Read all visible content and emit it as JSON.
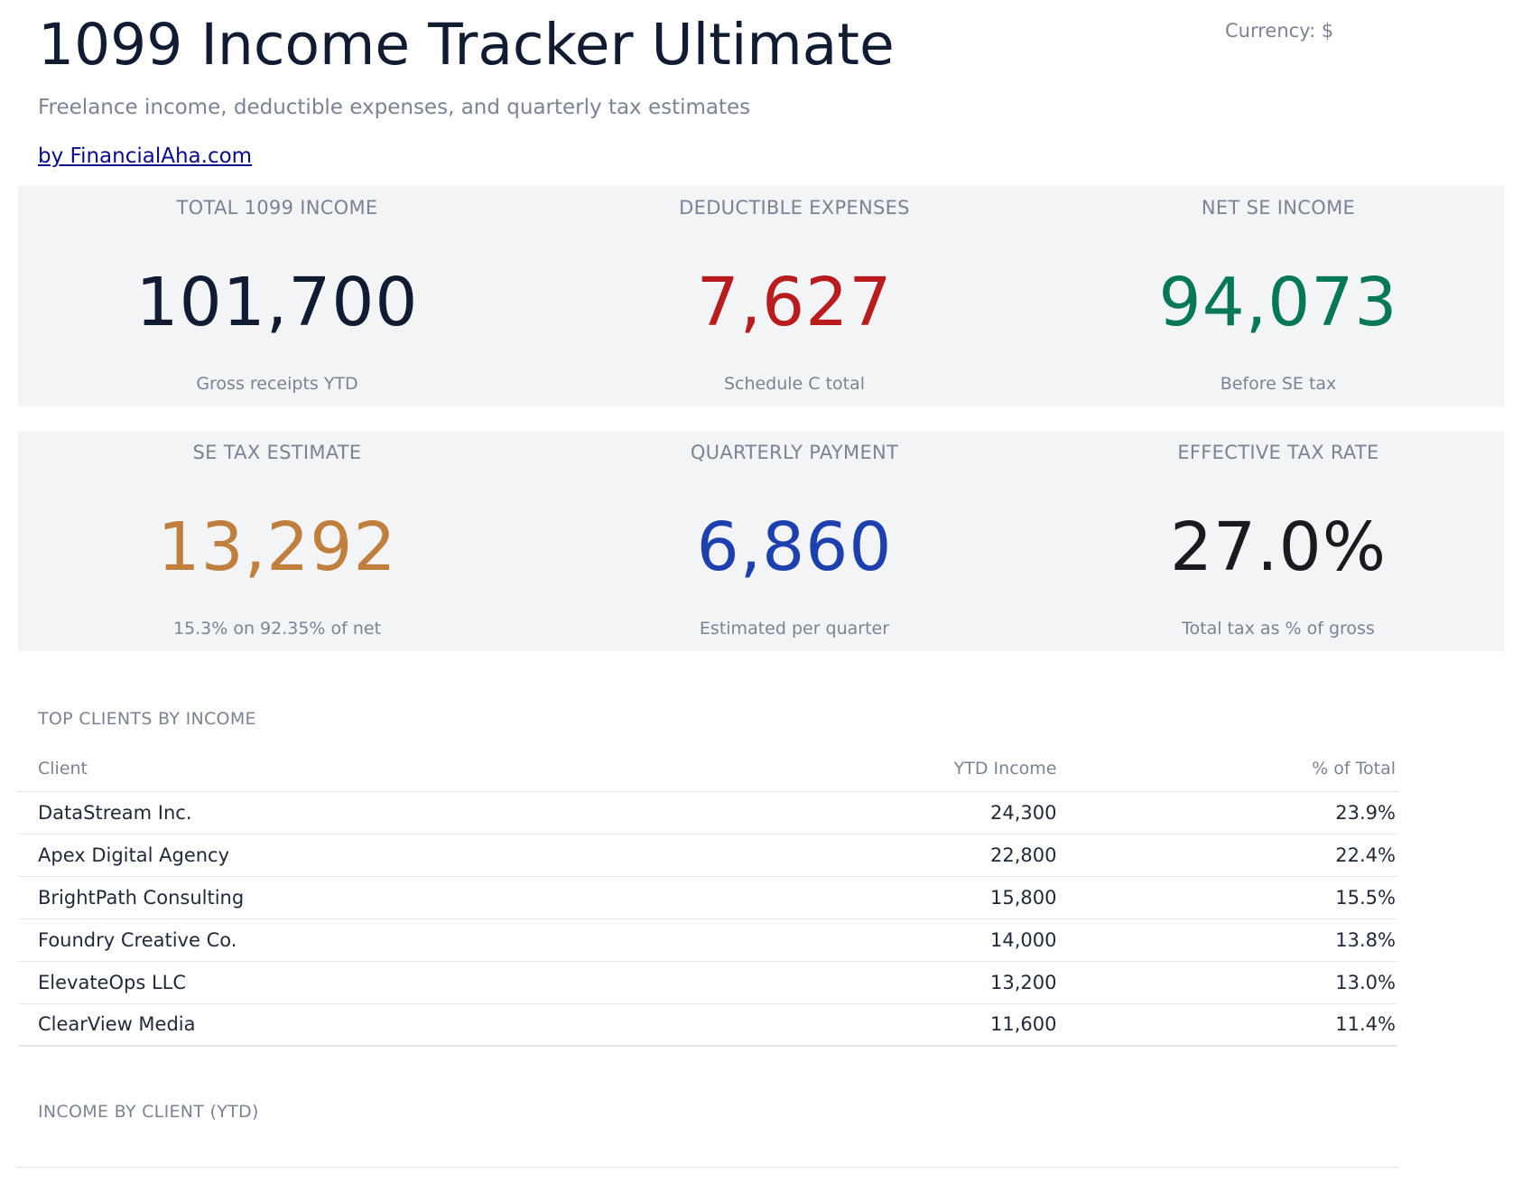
{
  "header": {
    "title": "1099 Income Tracker Ultimate",
    "currency": "Currency: $",
    "subtitle": "Freelance income, deductible expenses, and quarterly tax estimates",
    "byline": "by FinancialAha.com"
  },
  "kpis": {
    "total_income": {
      "label": "TOTAL 1099 INCOME",
      "value": "101,700",
      "sub": "Gross receipts YTD",
      "color": "#111c33"
    },
    "expenses": {
      "label": "DEDUCTIBLE EXPENSES",
      "value": "7,627",
      "sub": "Schedule C total",
      "color": "#b91c1c"
    },
    "net_se": {
      "label": "NET SE INCOME",
      "value": "94,073",
      "sub": "Before SE tax",
      "color": "#047857"
    },
    "se_tax": {
      "label": "SE TAX ESTIMATE",
      "value": "13,292",
      "sub": "15.3% on 92.35% of net",
      "color": "#c17f3e"
    },
    "quarterly": {
      "label": "QUARTERLY PAYMENT",
      "value": "6,860",
      "sub": "Estimated per quarter",
      "color": "#1e40af"
    },
    "effective_rate": {
      "label": "EFFECTIVE TAX RATE",
      "value": "27.0%",
      "sub": "Total tax as % of gross",
      "color": "#1a1a1f"
    }
  },
  "clients": {
    "section_title": "TOP CLIENTS BY INCOME",
    "columns": {
      "client": "Client",
      "income": "YTD Income",
      "pct": "% of Total"
    },
    "rows": [
      {
        "client": "DataStream Inc.",
        "income": "24,300",
        "pct": "23.9%"
      },
      {
        "client": "Apex Digital Agency",
        "income": "22,800",
        "pct": "22.4%"
      },
      {
        "client": "BrightPath Consulting",
        "income": "15,800",
        "pct": "15.5%"
      },
      {
        "client": "Foundry Creative Co.",
        "income": "14,000",
        "pct": "13.8%"
      },
      {
        "client": "ElevateOps LLC",
        "income": "13,200",
        "pct": "13.0%"
      },
      {
        "client": "ClearView Media",
        "income": "11,600",
        "pct": "11.4%"
      }
    ]
  },
  "income_chart": {
    "section_title": "INCOME BY CLIENT (YTD)"
  }
}
